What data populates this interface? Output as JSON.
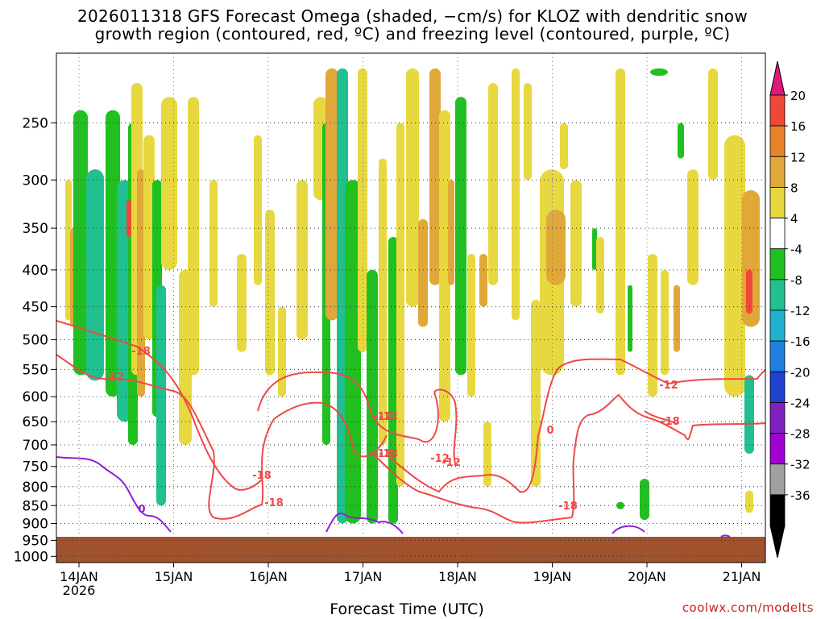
{
  "header": {
    "title_line1": "2026011318 GFS Forecast Omega (shaded, −cm/s) for KLOZ with dendritic snow",
    "title_line2": "growth region (contoured, red, ºC) and freezing level (contoured, purple, ºC)"
  },
  "footer": {
    "credit": "coolwx.com/modelts"
  },
  "chart_data": {
    "type": "heatmap",
    "title": "2026011318 GFS Forecast Omega (shaded, −cm/s) for KLOZ with dendritic snow growth region (contoured, red, ºC) and freezing level (contoured, purple, ºC)",
    "xlabel": "Forecast Time (UTC)",
    "ylabel": "",
    "x_ticks": [
      "14JAN",
      "15JAN",
      "16JAN",
      "17JAN",
      "18JAN",
      "19JAN",
      "20JAN",
      "21JAN"
    ],
    "x_tick_sub": "2026",
    "y_ticks": [
      250,
      300,
      350,
      400,
      450,
      500,
      550,
      600,
      650,
      700,
      750,
      800,
      850,
      900,
      950,
      1000
    ],
    "y_axis": "pressure (hPa), log scale, inverted",
    "ylim": [
      1020,
      200
    ],
    "grid": true,
    "colorbar": {
      "levels": [
        20,
        16,
        12,
        8,
        4,
        -4,
        -8,
        -12,
        -16,
        -20,
        -24,
        -28,
        -32,
        -36
      ],
      "colors": [
        "#e8345a",
        "#f04838",
        "#e8822a",
        "#e0a838",
        "#e8d840",
        "#ffffff",
        "#20c020",
        "#20c090",
        "#20b0d0",
        "#2080e0",
        "#2040d0",
        "#8020c0",
        "#a000d0",
        "#a0a0a0",
        "#000000"
      ],
      "top_arrow_color": "#e01878",
      "bottom_arrow_color": "#000000"
    },
    "contours": {
      "dgz_color": "#f04848",
      "freezing_color": "#9020d0",
      "labels": [
        "-18",
        "-12",
        "-18",
        "-18",
        "-12",
        "-18",
        "-12",
        "0",
        "-18",
        "-12",
        "-18",
        "-12",
        "-18",
        "-12",
        "0"
      ]
    },
    "terrain_color": "#a0522d"
  }
}
